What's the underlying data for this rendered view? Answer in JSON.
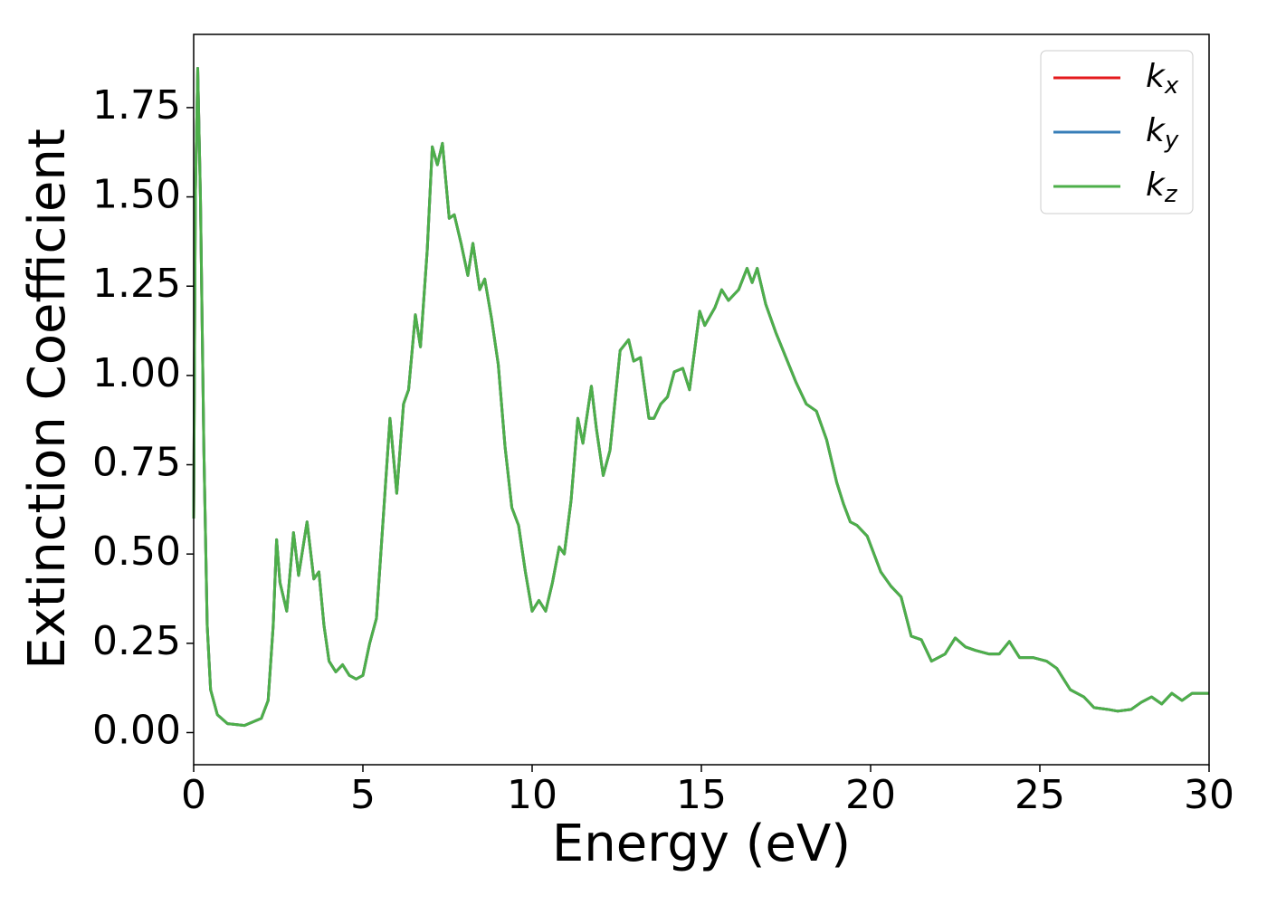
{
  "chart_data": {
    "type": "line",
    "xlabel": "Energy (eV)",
    "ylabel": "Extinction Coefficient",
    "x": [
      0,
      0.05,
      0.12,
      0.2,
      0.3,
      0.4,
      0.5,
      0.7,
      1.0,
      1.5,
      2.0,
      2.2,
      2.35,
      2.45,
      2.55,
      2.75,
      2.95,
      3.1,
      3.35,
      3.55,
      3.7,
      3.85,
      4.0,
      4.2,
      4.4,
      4.6,
      4.8,
      5.0,
      5.2,
      5.4,
      5.6,
      5.8,
      6.0,
      6.2,
      6.35,
      6.55,
      6.7,
      6.9,
      7.05,
      7.2,
      7.35,
      7.55,
      7.7,
      7.9,
      8.1,
      8.25,
      8.45,
      8.6,
      8.8,
      9.0,
      9.2,
      9.4,
      9.6,
      9.8,
      10.0,
      10.2,
      10.4,
      10.6,
      10.8,
      10.95,
      11.15,
      11.35,
      11.5,
      11.75,
      11.9,
      12.1,
      12.3,
      12.6,
      12.85,
      13.0,
      13.2,
      13.45,
      13.6,
      13.8,
      14.0,
      14.2,
      14.45,
      14.65,
      14.95,
      15.1,
      15.4,
      15.6,
      15.8,
      16.1,
      16.35,
      16.5,
      16.65,
      16.9,
      17.2,
      17.5,
      17.8,
      18.1,
      18.4,
      18.7,
      19.0,
      19.2,
      19.4,
      19.6,
      19.9,
      20.3,
      20.6,
      20.9,
      21.2,
      21.5,
      21.8,
      22.2,
      22.5,
      22.8,
      23.1,
      23.5,
      23.8,
      24.1,
      24.4,
      24.8,
      25.2,
      25.5,
      25.9,
      26.3,
      26.6,
      27.0,
      27.3,
      27.7,
      28.0,
      28.3,
      28.6,
      28.9,
      29.2,
      29.5,
      30.0
    ],
    "series": [
      {
        "name": "kx",
        "color": "#e41a1c",
        "values": [
          0.6,
          1.5,
          1.86,
          1.5,
          0.8,
          0.3,
          0.12,
          0.05,
          0.025,
          0.02,
          0.04,
          0.09,
          0.3,
          0.54,
          0.42,
          0.34,
          0.56,
          0.44,
          0.59,
          0.43,
          0.45,
          0.3,
          0.2,
          0.17,
          0.19,
          0.16,
          0.15,
          0.16,
          0.25,
          0.32,
          0.6,
          0.88,
          0.67,
          0.92,
          0.96,
          1.17,
          1.08,
          1.35,
          1.64,
          1.59,
          1.65,
          1.44,
          1.45,
          1.37,
          1.28,
          1.37,
          1.24,
          1.27,
          1.16,
          1.03,
          0.8,
          0.63,
          0.58,
          0.45,
          0.34,
          0.37,
          0.34,
          0.42,
          0.52,
          0.5,
          0.65,
          0.88,
          0.81,
          0.97,
          0.85,
          0.72,
          0.79,
          1.07,
          1.1,
          1.04,
          1.05,
          0.88,
          0.88,
          0.92,
          0.94,
          1.01,
          1.02,
          0.96,
          1.18,
          1.14,
          1.19,
          1.24,
          1.21,
          1.24,
          1.3,
          1.26,
          1.3,
          1.2,
          1.12,
          1.05,
          0.98,
          0.92,
          0.9,
          0.82,
          0.7,
          0.64,
          0.59,
          0.58,
          0.55,
          0.45,
          0.41,
          0.38,
          0.27,
          0.26,
          0.2,
          0.22,
          0.265,
          0.24,
          0.23,
          0.22,
          0.22,
          0.255,
          0.21,
          0.21,
          0.2,
          0.18,
          0.12,
          0.1,
          0.07,
          0.065,
          0.06,
          0.065,
          0.085,
          0.1,
          0.08,
          0.11,
          0.09,
          0.11,
          0.11
        ]
      },
      {
        "name": "ky",
        "color": "#377eb8",
        "values": [
          0.6,
          1.5,
          1.86,
          1.5,
          0.8,
          0.3,
          0.12,
          0.05,
          0.025,
          0.02,
          0.04,
          0.09,
          0.3,
          0.54,
          0.42,
          0.34,
          0.56,
          0.44,
          0.59,
          0.43,
          0.45,
          0.3,
          0.2,
          0.17,
          0.19,
          0.16,
          0.15,
          0.16,
          0.25,
          0.32,
          0.6,
          0.88,
          0.67,
          0.92,
          0.96,
          1.17,
          1.08,
          1.35,
          1.64,
          1.59,
          1.65,
          1.44,
          1.45,
          1.37,
          1.28,
          1.37,
          1.24,
          1.27,
          1.16,
          1.03,
          0.8,
          0.63,
          0.58,
          0.45,
          0.34,
          0.37,
          0.34,
          0.42,
          0.52,
          0.5,
          0.65,
          0.88,
          0.81,
          0.97,
          0.85,
          0.72,
          0.79,
          1.07,
          1.1,
          1.04,
          1.05,
          0.88,
          0.88,
          0.92,
          0.94,
          1.01,
          1.02,
          0.96,
          1.18,
          1.14,
          1.19,
          1.24,
          1.21,
          1.24,
          1.3,
          1.26,
          1.3,
          1.2,
          1.12,
          1.05,
          0.98,
          0.92,
          0.9,
          0.82,
          0.7,
          0.64,
          0.59,
          0.58,
          0.55,
          0.45,
          0.41,
          0.38,
          0.27,
          0.26,
          0.2,
          0.22,
          0.265,
          0.24,
          0.23,
          0.22,
          0.22,
          0.255,
          0.21,
          0.21,
          0.2,
          0.18,
          0.12,
          0.1,
          0.07,
          0.065,
          0.06,
          0.065,
          0.085,
          0.1,
          0.08,
          0.11,
          0.09,
          0.11,
          0.11
        ]
      },
      {
        "name": "kz",
        "color": "#4daf4a",
        "values": [
          0.6,
          1.5,
          1.86,
          1.5,
          0.8,
          0.3,
          0.12,
          0.05,
          0.025,
          0.02,
          0.04,
          0.09,
          0.3,
          0.54,
          0.42,
          0.34,
          0.56,
          0.44,
          0.59,
          0.43,
          0.45,
          0.3,
          0.2,
          0.17,
          0.19,
          0.16,
          0.15,
          0.16,
          0.25,
          0.32,
          0.6,
          0.88,
          0.67,
          0.92,
          0.96,
          1.17,
          1.08,
          1.35,
          1.64,
          1.59,
          1.65,
          1.44,
          1.45,
          1.37,
          1.28,
          1.37,
          1.24,
          1.27,
          1.16,
          1.03,
          0.8,
          0.63,
          0.58,
          0.45,
          0.34,
          0.37,
          0.34,
          0.42,
          0.52,
          0.5,
          0.65,
          0.88,
          0.81,
          0.97,
          0.85,
          0.72,
          0.79,
          1.07,
          1.1,
          1.04,
          1.05,
          0.88,
          0.88,
          0.92,
          0.94,
          1.01,
          1.02,
          0.96,
          1.18,
          1.14,
          1.19,
          1.24,
          1.21,
          1.24,
          1.3,
          1.26,
          1.3,
          1.2,
          1.12,
          1.05,
          0.98,
          0.92,
          0.9,
          0.82,
          0.7,
          0.64,
          0.59,
          0.58,
          0.55,
          0.45,
          0.41,
          0.38,
          0.27,
          0.26,
          0.2,
          0.22,
          0.265,
          0.24,
          0.23,
          0.22,
          0.22,
          0.255,
          0.21,
          0.21,
          0.2,
          0.18,
          0.12,
          0.1,
          0.07,
          0.065,
          0.06,
          0.065,
          0.085,
          0.1,
          0.08,
          0.11,
          0.09,
          0.11,
          0.11
        ]
      }
    ],
    "xlim": [
      0,
      30
    ],
    "xticks": [
      0,
      5,
      10,
      15,
      20,
      25,
      30
    ],
    "ylim": [
      -0.09,
      1.955
    ],
    "yticks": [
      {
        "value": 0,
        "label": "0.00"
      },
      {
        "value": 0.25,
        "label": "0.25"
      },
      {
        "value": 0.5,
        "label": "0.50"
      },
      {
        "value": 0.75,
        "label": "0.75"
      },
      {
        "value": 1,
        "label": "1.00"
      },
      {
        "value": 1.25,
        "label": "1.25"
      },
      {
        "value": 1.5,
        "label": "1.50"
      },
      {
        "value": 1.75,
        "label": "1.75"
      }
    ],
    "grid": false,
    "legend": "upper right"
  }
}
